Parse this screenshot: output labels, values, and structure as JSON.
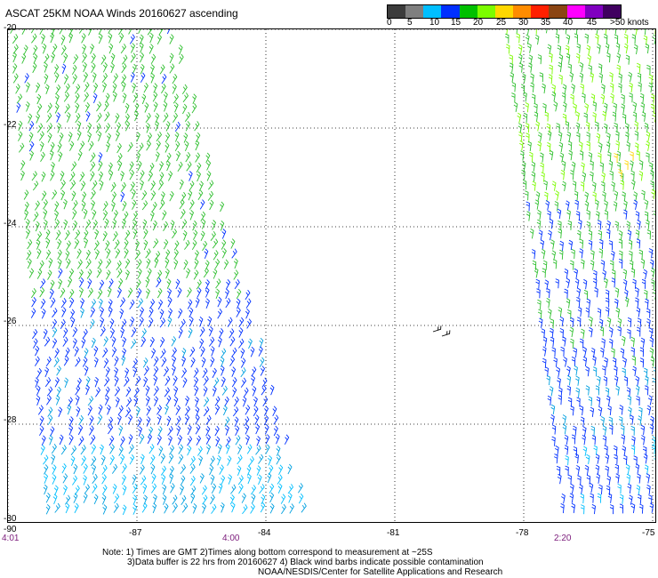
{
  "title": "ASCAT 25KM NOAA Winds 20160627 ascending",
  "legend": {
    "colors": [
      "#3c3c3c",
      "#7f7f7f",
      "#00bfff",
      "#0030ff",
      "#00c000",
      "#7cfc00",
      "#ffd700",
      "#ff8c00",
      "#ff2000",
      "#8b4513",
      "#ff00ff",
      "#8000c0",
      "#400060"
    ],
    "labels": [
      "0",
      "5",
      "10",
      "15",
      "20",
      "25",
      "30",
      "35",
      "40",
      "45",
      ">50 knots"
    ]
  },
  "axes": {
    "lat_labels": [
      "-20",
      "-22",
      "-24",
      "-26",
      "-28",
      "-30"
    ],
    "lon_labels": [
      "-90",
      "-87",
      "-84",
      "-81",
      "-78",
      "-75"
    ]
  },
  "times": [
    "4:01",
    "4:00",
    "2:20"
  ],
  "notes": [
    "Note: 1) Times are GMT 2)Times along bottom correspond to measurement at ~25S",
    "3)Data buffer is 22 hrs from 20160627 4) Black wind barbs indicate possible contamination",
    "NOAA/NESDIS/Center for Satellite Applications and Research"
  ],
  "chart_data": {
    "type": "wind-barb-map",
    "lat_range": [
      -30,
      -20
    ],
    "lon_range": [
      -90,
      -75
    ],
    "swaths": [
      {
        "name": "west",
        "speed_knots_north": 15,
        "speed_knots_south": 10,
        "direction": "southeasterly"
      },
      {
        "name": "east",
        "speed_knots_north": 20,
        "speed_knots_south": 10,
        "direction": "southerly"
      }
    ]
  }
}
